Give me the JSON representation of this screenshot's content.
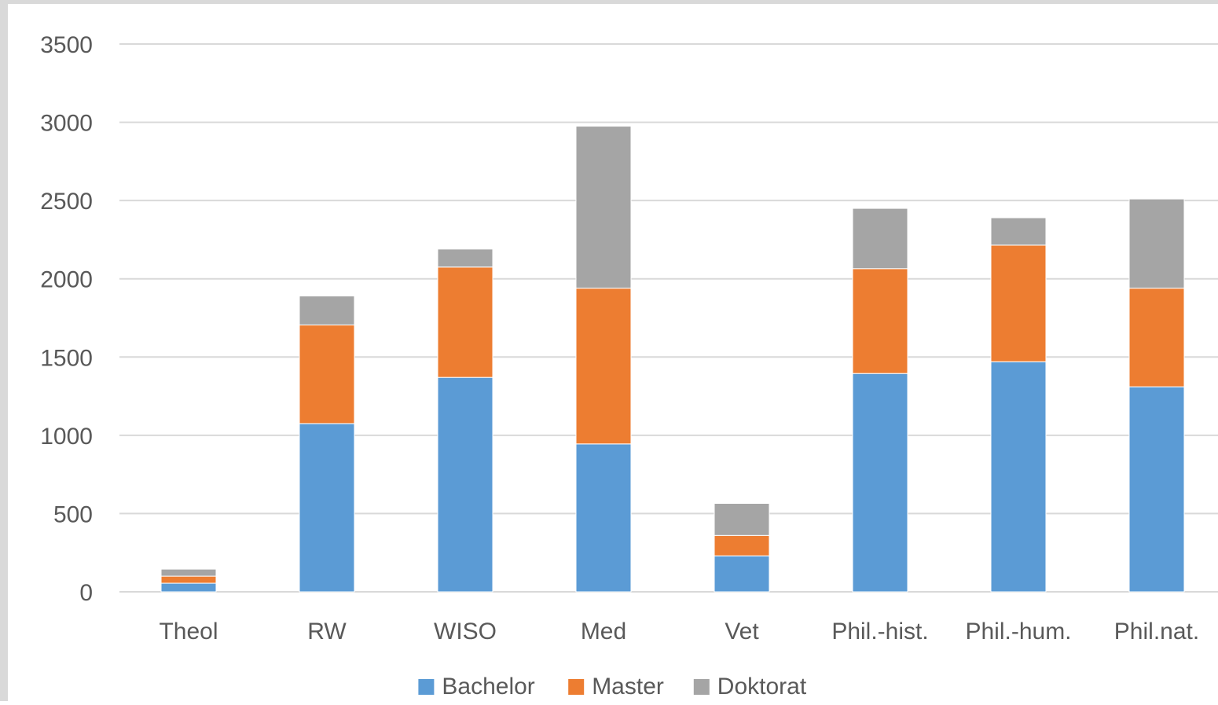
{
  "chart_data": {
    "type": "bar",
    "stacked": true,
    "title": "",
    "xlabel": "",
    "ylabel": "",
    "ylim": [
      0,
      3500
    ],
    "yticks": [
      0,
      500,
      1000,
      1500,
      2000,
      2500,
      3000,
      3500
    ],
    "grid": true,
    "legend_position": "bottom",
    "categories": [
      "Theol",
      "RW",
      "WISO",
      "Med",
      "Vet",
      "Phil.-hist.",
      "Phil.-hum.",
      "Phil.nat."
    ],
    "series": [
      {
        "name": "Bachelor",
        "color": "#5b9bd5",
        "values": [
          55,
          1075,
          1370,
          945,
          230,
          1395,
          1470,
          1310
        ]
      },
      {
        "name": "Master",
        "color": "#ed7d31",
        "values": [
          45,
          630,
          705,
          995,
          130,
          670,
          745,
          630
        ]
      },
      {
        "name": "Doktorat",
        "color": "#a5a5a5",
        "values": [
          45,
          185,
          115,
          1035,
          205,
          385,
          175,
          570
        ]
      }
    ]
  }
}
